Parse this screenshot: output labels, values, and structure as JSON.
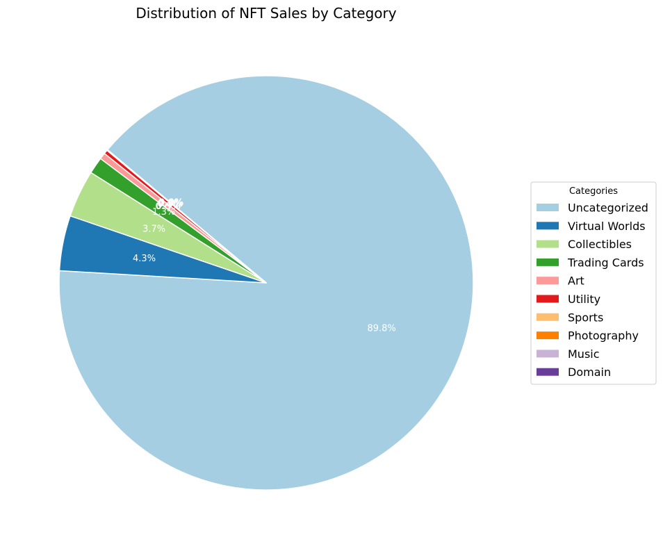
{
  "chart_data": {
    "type": "pie",
    "title": "Distribution of NFT Sales by Category",
    "legend_title": "Categories",
    "legend_position": "center-right",
    "start_angle_deg": 140,
    "direction": "clockwise",
    "slices": [
      {
        "label": "Uncategorized",
        "value": 89.8,
        "pct_label": "89.8%",
        "color": "#a6cee3"
      },
      {
        "label": "Virtual Worlds",
        "value": 4.3,
        "pct_label": "4.3%",
        "color": "#1f78b4"
      },
      {
        "label": "Collectibles",
        "value": 3.7,
        "pct_label": "3.7%",
        "color": "#b2df8a"
      },
      {
        "label": "Trading Cards",
        "value": 1.3,
        "pct_label": "1.3%",
        "color": "#33a02c"
      },
      {
        "label": "Art",
        "value": 0.5,
        "pct_label": "0.5%",
        "color": "#fb9a99"
      },
      {
        "label": "Utility",
        "value": 0.3,
        "pct_label": "0.3%",
        "color": "#e31a1c"
      },
      {
        "label": "Sports",
        "value": 0.03,
        "pct_label": "0.0%",
        "color": "#fdbf6f"
      },
      {
        "label": "Photography",
        "value": 0.02,
        "pct_label": "0.0%",
        "color": "#ff7f00"
      },
      {
        "label": "Music",
        "value": 0.01,
        "pct_label": "0.0%",
        "color": "#cab2d6"
      },
      {
        "label": "Domain",
        "value": 0.01,
        "pct_label": "0.0%",
        "color": "#6a3d9a"
      }
    ]
  }
}
